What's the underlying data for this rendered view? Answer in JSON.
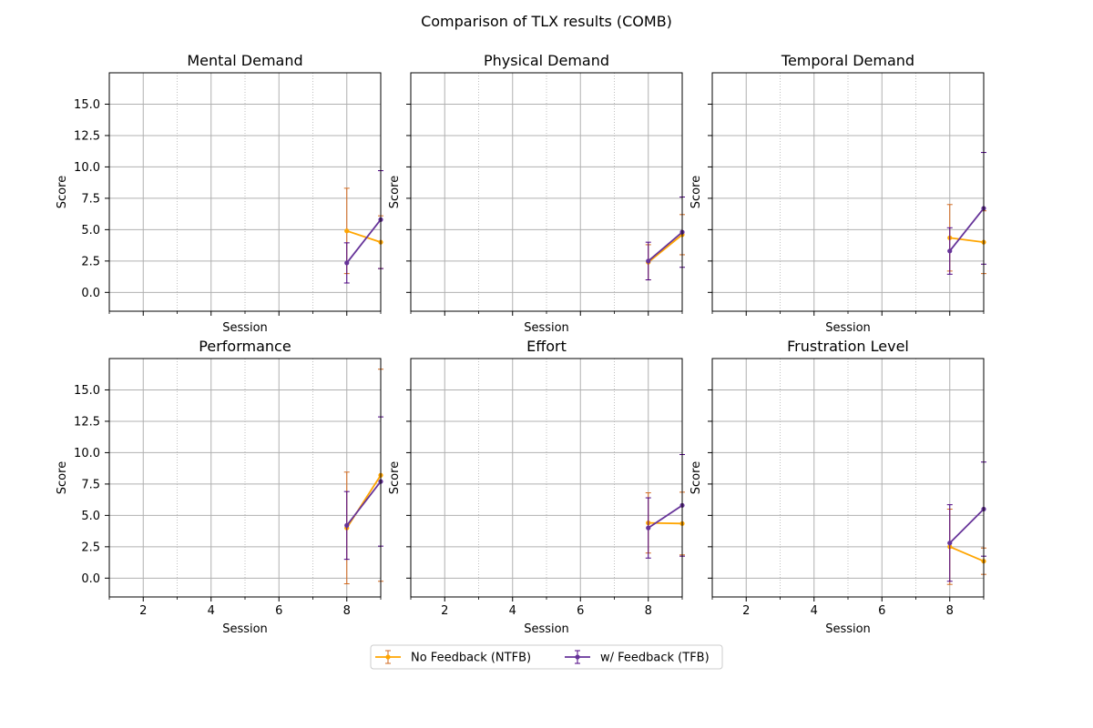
{
  "figure": {
    "title": "Comparison of TLX results (COMB)"
  },
  "colors": {
    "ntfb": "#ffa500",
    "ntfb_err": "#d2691e",
    "tfb": "#663399",
    "tfb_err": "#4b0082",
    "grid": "#b0b0b0",
    "axis": "#000000"
  },
  "legend": {
    "placement": "bottom-center",
    "entries": [
      "No Feedback (NTFB)",
      "w/ Feedback (TFB)"
    ]
  },
  "chart_data": [
    {
      "type": "line",
      "title": "Mental Demand",
      "xlabel": "Session",
      "ylabel": "Score",
      "xlim": [
        1,
        9
      ],
      "ylim": [
        -1.5,
        17.5
      ],
      "xticks": [
        "2",
        "4",
        "6",
        "8"
      ],
      "yticks": [
        "0.0",
        "2.5",
        "5.0",
        "7.5",
        "10.0",
        "12.5",
        "15.0"
      ],
      "show_xticklabels": false,
      "grid": true,
      "series": [
        {
          "name": "No Feedback (NTFB)",
          "x": [
            8,
            9
          ],
          "y": [
            4.9,
            4.0
          ],
          "err": [
            3.4,
            2.1
          ]
        },
        {
          "name": "w/ Feedback (TFB)",
          "x": [
            8,
            9
          ],
          "y": [
            2.35,
            5.8
          ],
          "err": [
            1.6,
            3.9
          ]
        }
      ]
    },
    {
      "type": "line",
      "title": "Physical Demand",
      "xlabel": "Session",
      "ylabel": "Score",
      "xlim": [
        1,
        9
      ],
      "ylim": [
        -1.5,
        17.5
      ],
      "xticks": [
        "2",
        "4",
        "6",
        "8"
      ],
      "yticks": [
        "0.0",
        "2.5",
        "5.0",
        "7.5",
        "10.0",
        "12.5",
        "15.0"
      ],
      "show_xticklabels": false,
      "grid": true,
      "series": [
        {
          "name": "No Feedback (NTFB)",
          "x": [
            8,
            9
          ],
          "y": [
            2.4,
            4.6
          ],
          "err": [
            1.4,
            1.6
          ]
        },
        {
          "name": "w/ Feedback (TFB)",
          "x": [
            8,
            9
          ],
          "y": [
            2.5,
            4.8
          ],
          "err": [
            1.5,
            2.8
          ]
        }
      ]
    },
    {
      "type": "line",
      "title": "Temporal Demand",
      "xlabel": "Session",
      "ylabel": "Score",
      "xlim": [
        1,
        9
      ],
      "ylim": [
        -1.5,
        17.5
      ],
      "xticks": [
        "2",
        "4",
        "6",
        "8"
      ],
      "yticks": [
        "0.0",
        "2.5",
        "5.0",
        "7.5",
        "10.0",
        "12.5",
        "15.0"
      ],
      "show_xticklabels": false,
      "grid": true,
      "series": [
        {
          "name": "No Feedback (NTFB)",
          "x": [
            8,
            9
          ],
          "y": [
            4.35,
            4.0
          ],
          "err": [
            2.65,
            2.5
          ]
        },
        {
          "name": "w/ Feedback (TFB)",
          "x": [
            8,
            9
          ],
          "y": [
            3.3,
            6.7
          ],
          "err": [
            1.85,
            4.45
          ]
        }
      ]
    },
    {
      "type": "line",
      "title": "Performance",
      "xlabel": "Session",
      "ylabel": "Score",
      "xlim": [
        1,
        9
      ],
      "ylim": [
        -1.5,
        17.5
      ],
      "xticks": [
        "2",
        "4",
        "6",
        "8"
      ],
      "yticks": [
        "0.0",
        "2.5",
        "5.0",
        "7.5",
        "10.0",
        "12.5",
        "15.0"
      ],
      "show_xticklabels": true,
      "grid": true,
      "series": [
        {
          "name": "No Feedback (NTFB)",
          "x": [
            8,
            9
          ],
          "y": [
            4.0,
            8.2
          ],
          "err": [
            4.45,
            8.45
          ]
        },
        {
          "name": "w/ Feedback (TFB)",
          "x": [
            8,
            9
          ],
          "y": [
            4.2,
            7.7
          ],
          "err": [
            2.7,
            5.15
          ]
        }
      ]
    },
    {
      "type": "line",
      "title": "Effort",
      "xlabel": "Session",
      "ylabel": "Score",
      "xlim": [
        1,
        9
      ],
      "ylim": [
        -1.5,
        17.5
      ],
      "xticks": [
        "2",
        "4",
        "6",
        "8"
      ],
      "yticks": [
        "0.0",
        "2.5",
        "5.0",
        "7.5",
        "10.0",
        "12.5",
        "15.0"
      ],
      "show_xticklabels": true,
      "grid": true,
      "series": [
        {
          "name": "No Feedback (NTFB)",
          "x": [
            8,
            9
          ],
          "y": [
            4.4,
            4.35
          ],
          "err": [
            2.4,
            2.5
          ]
        },
        {
          "name": "w/ Feedback (TFB)",
          "x": [
            8,
            9
          ],
          "y": [
            4.0,
            5.8
          ],
          "err": [
            2.4,
            4.05
          ]
        }
      ]
    },
    {
      "type": "line",
      "title": "Frustration Level",
      "xlabel": "Session",
      "ylabel": "Score",
      "xlim": [
        1,
        9
      ],
      "ylim": [
        -1.5,
        17.5
      ],
      "xticks": [
        "2",
        "4",
        "6",
        "8"
      ],
      "yticks": [
        "0.0",
        "2.5",
        "5.0",
        "7.5",
        "10.0",
        "12.5",
        "15.0"
      ],
      "show_xticklabels": true,
      "grid": true,
      "series": [
        {
          "name": "No Feedback (NTFB)",
          "x": [
            8,
            9
          ],
          "y": [
            2.5,
            1.35
          ],
          "err": [
            3.0,
            1.05
          ]
        },
        {
          "name": "w/ Feedback (TFB)",
          "x": [
            8,
            9
          ],
          "y": [
            2.8,
            5.5
          ],
          "err": [
            3.05,
            3.75
          ]
        }
      ]
    }
  ]
}
